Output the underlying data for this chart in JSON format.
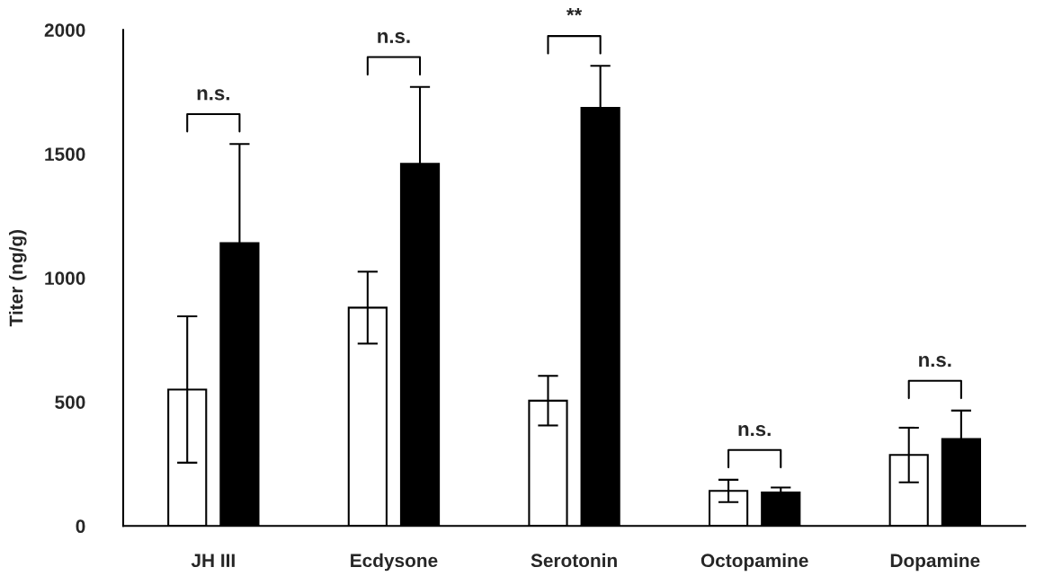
{
  "chart_data": {
    "type": "bar",
    "ylabel": "Titer (ng/g)",
    "categories": [
      "JH III",
      "Ecdysone",
      "Serotonin",
      "Octopamine",
      "Dopamine"
    ],
    "series": [
      {
        "color": "#ffffff",
        "values": [
          550,
          880,
          505,
          141,
          286
        ],
        "errors": [
          295,
          145,
          100,
          45,
          110
        ]
      },
      {
        "color": "#000000",
        "values": [
          1140,
          1460,
          1685,
          135,
          350
        ],
        "errors": [
          400,
          310,
          170,
          20,
          115
        ]
      }
    ],
    "annotations": [
      "n.s.",
      "n.s.",
      "**",
      "n.s.",
      "n.s."
    ],
    "ylim": [
      0,
      2000
    ],
    "yticks": [
      0,
      500,
      1000,
      1500,
      2000
    ],
    "grid": false,
    "legend": false
  }
}
